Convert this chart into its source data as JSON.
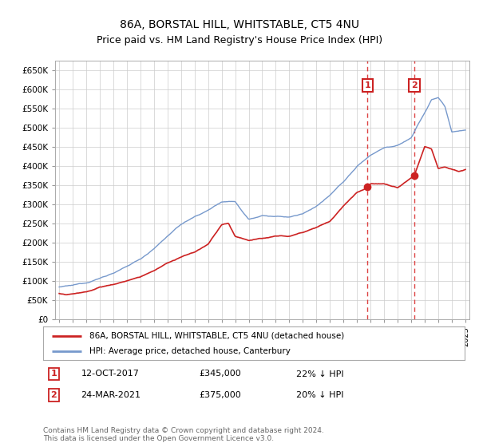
{
  "title": "86A, BORSTAL HILL, WHITSTABLE, CT5 4NU",
  "subtitle": "Price paid vs. HM Land Registry's House Price Index (HPI)",
  "legend_label_red": "86A, BORSTAL HILL, WHITSTABLE, CT5 4NU (detached house)",
  "legend_label_blue": "HPI: Average price, detached house, Canterbury",
  "annotation1_label": "1",
  "annotation1_date": "12-OCT-2017",
  "annotation1_price": "£345,000",
  "annotation1_hpi": "22% ↓ HPI",
  "annotation1_year": 2017.78,
  "annotation1_value": 345000,
  "annotation2_label": "2",
  "annotation2_date": "24-MAR-2021",
  "annotation2_price": "£375,000",
  "annotation2_hpi": "20% ↓ HPI",
  "annotation2_year": 2021.23,
  "annotation2_value": 375000,
  "footnote1": "Contains HM Land Registry data © Crown copyright and database right 2024.",
  "footnote2": "This data is licensed under the Open Government Licence v3.0.",
  "ylim": [
    0,
    675000
  ],
  "yticks": [
    0,
    50000,
    100000,
    150000,
    200000,
    250000,
    300000,
    350000,
    400000,
    450000,
    500000,
    550000,
    600000,
    650000
  ],
  "ytick_labels": [
    "£0",
    "£50K",
    "£100K",
    "£150K",
    "£200K",
    "£250K",
    "£300K",
    "£350K",
    "£400K",
    "£450K",
    "£500K",
    "£550K",
    "£600K",
    "£650K"
  ],
  "xlim_start": 1994.7,
  "xlim_end": 2025.3,
  "background_color": "#ffffff",
  "plot_bg_color": "#ffffff",
  "grid_color": "#cccccc",
  "red_color": "#cc2222",
  "blue_color": "#7799cc",
  "vline_color": "#dd4444",
  "annotation_box_color": "#cc2222"
}
